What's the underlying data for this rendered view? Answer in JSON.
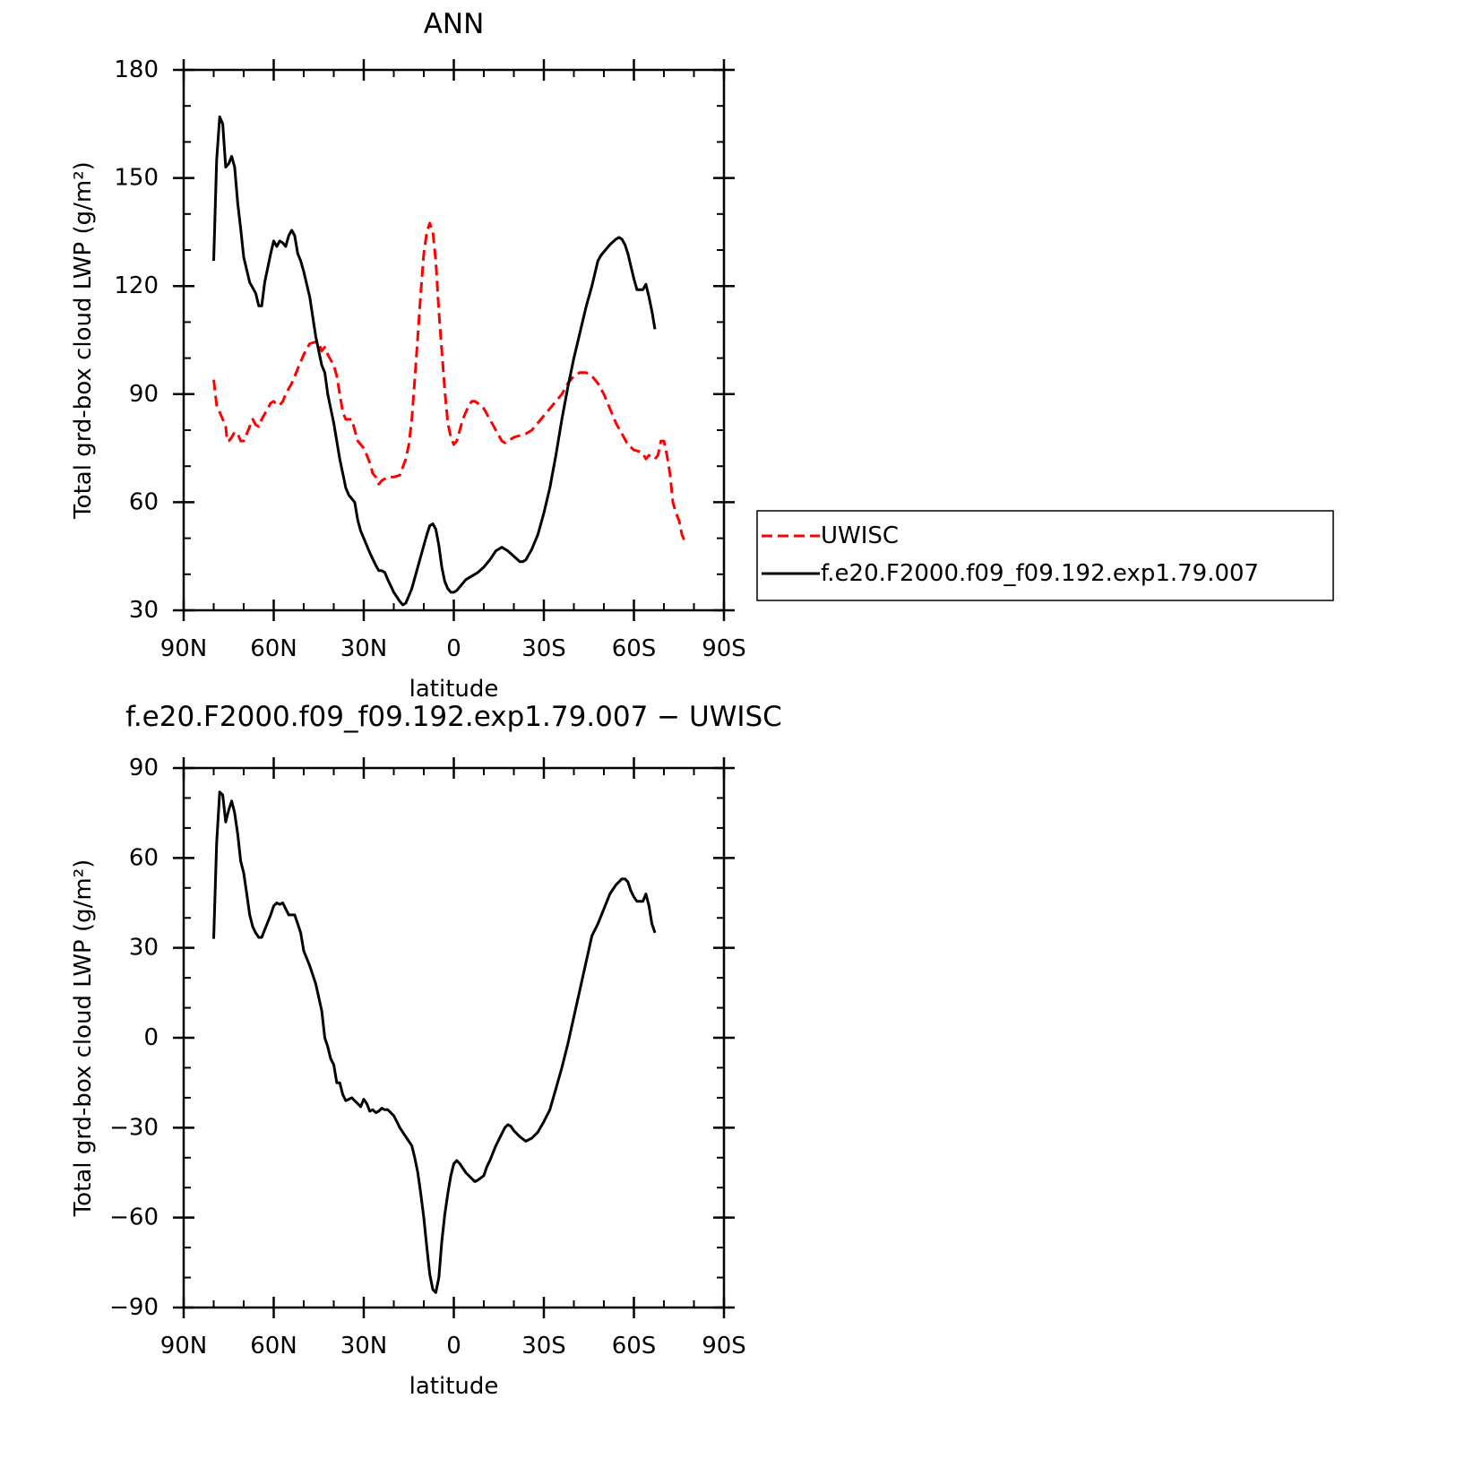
{
  "chart_data": [
    {
      "type": "line",
      "title": "ANN",
      "xlabel": "latitude",
      "ylabel": "Total grd-box cloud LWP (g/m²)",
      "xlim": [
        90,
        -90
      ],
      "xticks": [
        {
          "value": 90,
          "label": "90N"
        },
        {
          "value": 60,
          "label": "60N"
        },
        {
          "value": 30,
          "label": "30N"
        },
        0,
        {
          "value": -30,
          "label": "30S"
        },
        {
          "value": -60,
          "label": "60S"
        },
        {
          "value": -90,
          "label": "90S"
        }
      ],
      "ylim": [
        30,
        180
      ],
      "yticks": [
        30,
        60,
        90,
        120,
        150,
        180
      ],
      "legend": "right",
      "series": [
        {
          "name": "UWISC",
          "color": "#ff0000",
          "linestyle": "dashed",
          "x": [
            80,
            79,
            78,
            77,
            76,
            75.5,
            75,
            74,
            73,
            72,
            71,
            70,
            69,
            68,
            67,
            66,
            65,
            64,
            62,
            61,
            60,
            59,
            58,
            57,
            56,
            54,
            52,
            50,
            48,
            46,
            45,
            44,
            43,
            42,
            40,
            39,
            38,
            37,
            36,
            35,
            34,
            33,
            32,
            30,
            29,
            28,
            27,
            26,
            25,
            24,
            22,
            20,
            18,
            16,
            15,
            14,
            13,
            12,
            11,
            10,
            9,
            8,
            7,
            6,
            5,
            4,
            3,
            2,
            1,
            0,
            -1,
            -2,
            -3,
            -4,
            -5,
            -6,
            -7,
            -8,
            -10,
            -12,
            -14,
            -16,
            -17,
            -18,
            -20,
            -22,
            -24,
            -26,
            -28,
            -30,
            -32,
            -34,
            -36,
            -38,
            -40,
            -42,
            -44,
            -46,
            -48,
            -50,
            -52,
            -54,
            -56,
            -58,
            -60,
            -62,
            -63,
            -64,
            -65,
            -66,
            -67,
            -68,
            -69,
            -70,
            -71,
            -72,
            -73,
            -74,
            -75,
            -76,
            -77
          ],
          "values": [
            94,
            87,
            85,
            83,
            81,
            77,
            77,
            78,
            79.5,
            79,
            77,
            77,
            79,
            81,
            83,
            81.5,
            81,
            83,
            86,
            87.5,
            88,
            87,
            87,
            88,
            90,
            93,
            97,
            101,
            104,
            104.5,
            104,
            102,
            103,
            101,
            98,
            95,
            90,
            85,
            83,
            83,
            83,
            80,
            77,
            75,
            73,
            71,
            68,
            67,
            65,
            66,
            67,
            67,
            67.5,
            72,
            76,
            83,
            94,
            106,
            118,
            129,
            135,
            137.5,
            135,
            127,
            113,
            102,
            91,
            82,
            78,
            76,
            77,
            80,
            83,
            85,
            87,
            88,
            88,
            87.5,
            86,
            83,
            80,
            77,
            76.5,
            77,
            78,
            78.5,
            79,
            80,
            82,
            84,
            86,
            88,
            90,
            93,
            95,
            96,
            96,
            95,
            93,
            90,
            86,
            82,
            79,
            76,
            74.5,
            74,
            73.5,
            72,
            73,
            72.5,
            72,
            73,
            77,
            77,
            73,
            68,
            60,
            57,
            55,
            51,
            49
          ]
        },
        {
          "name": "f.e20.F2000.f09_f09.192.exp1.79.007",
          "color": "#000000",
          "linestyle": "solid",
          "x": [
            80,
            79,
            78,
            77,
            76,
            75,
            74,
            73,
            72,
            71,
            70,
            68,
            66,
            65,
            64,
            63,
            61,
            60,
            59,
            58,
            57,
            56,
            55,
            54,
            53,
            52,
            51,
            50,
            48,
            46,
            44,
            43,
            42,
            40,
            38,
            36,
            35,
            34,
            33,
            32,
            31,
            30,
            28,
            26,
            25,
            24,
            23,
            22,
            20,
            18,
            17,
            16,
            15,
            14,
            12,
            10,
            9,
            8,
            7,
            6,
            5,
            4,
            3,
            2,
            1,
            0,
            -1,
            -2,
            -4,
            -6,
            -8,
            -10,
            -12,
            -14,
            -16,
            -18,
            -20,
            -22,
            -23,
            -24,
            -26,
            -28,
            -30,
            -32,
            -34,
            -36,
            -38,
            -40,
            -42,
            -44,
            -46,
            -48,
            -49,
            -50,
            -52,
            -54,
            -55,
            -56,
            -57,
            -58,
            -60,
            -61,
            -62,
            -63,
            -64,
            -65,
            -66,
            -67
          ],
          "values": [
            127,
            155,
            167,
            165,
            153,
            154,
            156,
            153,
            143,
            136,
            128,
            121,
            118,
            114.5,
            114.5,
            121,
            129,
            132.5,
            131,
            132.5,
            132,
            131,
            134,
            135.5,
            134,
            129,
            127,
            124,
            117,
            106,
            98,
            96,
            90,
            82,
            72,
            64,
            62,
            61,
            60,
            55,
            52,
            50,
            46,
            42.5,
            41,
            41,
            40.5,
            38.5,
            35,
            32.5,
            31.5,
            32,
            34,
            36,
            42,
            48,
            51,
            53.5,
            54,
            52.5,
            48,
            42,
            38,
            36,
            35,
            35,
            35.5,
            36.5,
            38.5,
            39.5,
            40.5,
            42,
            44,
            46.5,
            47.5,
            46.5,
            45,
            43.5,
            43.5,
            44,
            47,
            51,
            57,
            64,
            73,
            83,
            92,
            100,
            107,
            114,
            120,
            127,
            128.5,
            129.5,
            131.5,
            133,
            133.5,
            133,
            131.5,
            129,
            122,
            119,
            119,
            119,
            120.5,
            117,
            113,
            108
          ]
        }
      ]
    },
    {
      "type": "line",
      "title": "f.e20.F2000.f09_f09.192.exp1.79.007 − UWISC",
      "xlabel": "latitude",
      "ylabel": "Total grd-box cloud LWP (g/m²)",
      "xlim": [
        90,
        -90
      ],
      "xticks": [
        {
          "value": 90,
          "label": "90N"
        },
        {
          "value": 60,
          "label": "60N"
        },
        {
          "value": 30,
          "label": "30N"
        },
        0,
        {
          "value": -30,
          "label": "30S"
        },
        {
          "value": -60,
          "label": "60S"
        },
        {
          "value": -90,
          "label": "90S"
        }
      ],
      "ylim": [
        -90,
        90
      ],
      "yticks": [
        {
          "value": -90,
          "label": "−90"
        },
        {
          "value": -60,
          "label": "−60"
        },
        {
          "value": -30,
          "label": "−30"
        },
        0,
        30,
        60,
        90
      ],
      "series": [
        {
          "color": "#000000",
          "linestyle": "solid",
          "x": [
            80,
            79,
            78,
            77,
            76,
            75,
            74,
            73,
            72,
            71,
            70,
            69,
            68,
            67,
            66,
            65,
            64,
            63,
            61,
            60,
            59,
            58,
            57,
            56,
            55,
            54,
            53,
            52,
            51,
            50,
            48,
            46,
            44,
            43,
            42,
            41,
            40,
            39,
            38,
            37,
            36,
            35,
            34,
            33,
            32,
            31,
            30,
            29,
            28,
            27,
            26,
            25,
            24,
            23,
            22,
            21,
            20,
            19,
            18,
            16,
            14,
            13,
            12,
            11,
            10,
            9,
            8,
            7,
            6,
            5,
            4,
            3,
            2,
            1,
            0,
            -1,
            -2,
            -4,
            -6,
            -7,
            -8,
            -10,
            -11,
            -12,
            -14,
            -16,
            -17,
            -18,
            -19,
            -20,
            -22,
            -24,
            -26,
            -28,
            -30,
            -32,
            -34,
            -36,
            -38,
            -40,
            -42,
            -44,
            -46,
            -48,
            -50,
            -52,
            -54,
            -55,
            -56,
            -57,
            -58,
            -59,
            -60,
            -61,
            -62,
            -63,
            -64,
            -65,
            -66,
            -67
          ],
          "values": [
            33,
            65,
            82,
            81,
            72,
            76,
            79,
            75,
            68,
            59,
            55,
            48,
            41,
            37,
            35,
            33.5,
            33.5,
            36,
            41,
            44,
            45,
            44.5,
            45,
            43,
            41,
            41,
            41,
            38,
            35,
            29,
            24,
            18,
            9,
            0,
            -3,
            -7,
            -9,
            -15,
            -15,
            -19,
            -21,
            -20.5,
            -20,
            -21,
            -22,
            -23,
            -20.5,
            -22,
            -24.5,
            -24,
            -25,
            -24.5,
            -23.5,
            -24,
            -24,
            -25,
            -26,
            -28,
            -30,
            -33,
            -36,
            -40,
            -45,
            -52,
            -60,
            -70,
            -79,
            -84,
            -85,
            -80,
            -68,
            -59,
            -52,
            -46,
            -42,
            -41,
            -42,
            -45,
            -47,
            -48,
            -47.5,
            -46,
            -43,
            -41,
            -36,
            -32,
            -30,
            -29,
            -29.5,
            -31,
            -33,
            -34.5,
            -33.5,
            -31.5,
            -28,
            -24,
            -17,
            -10,
            -2,
            7,
            16,
            25,
            34,
            38,
            43,
            48,
            51,
            52,
            53,
            53,
            52,
            49,
            47,
            45.5,
            45.5,
            45.5,
            48,
            44,
            38,
            35
          ]
        }
      ]
    }
  ]
}
